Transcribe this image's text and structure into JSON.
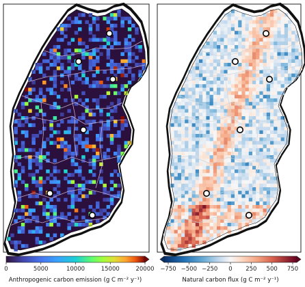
{
  "panels": [
    {
      "id": "anthropogenic",
      "colormap": "turbo",
      "colorbar": {
        "ticks": [
          "0",
          "5000",
          "10000",
          "15000",
          "20000"
        ],
        "label": "Anthropogenic carbon emission (g C m⁻² y⁻¹)"
      },
      "extend": "max",
      "background_color": "#2b0f3c",
      "site_count": 6
    },
    {
      "id": "natural",
      "colormap": "diverging-blue-white-red",
      "colorbar": {
        "ticks": [
          "−750",
          "−500",
          "−250",
          "0",
          "250",
          "500",
          "750"
        ],
        "label": "Natural carbon flux (g C m⁻² y⁻¹)"
      },
      "extend": "both",
      "site_count": 6
    }
  ]
}
